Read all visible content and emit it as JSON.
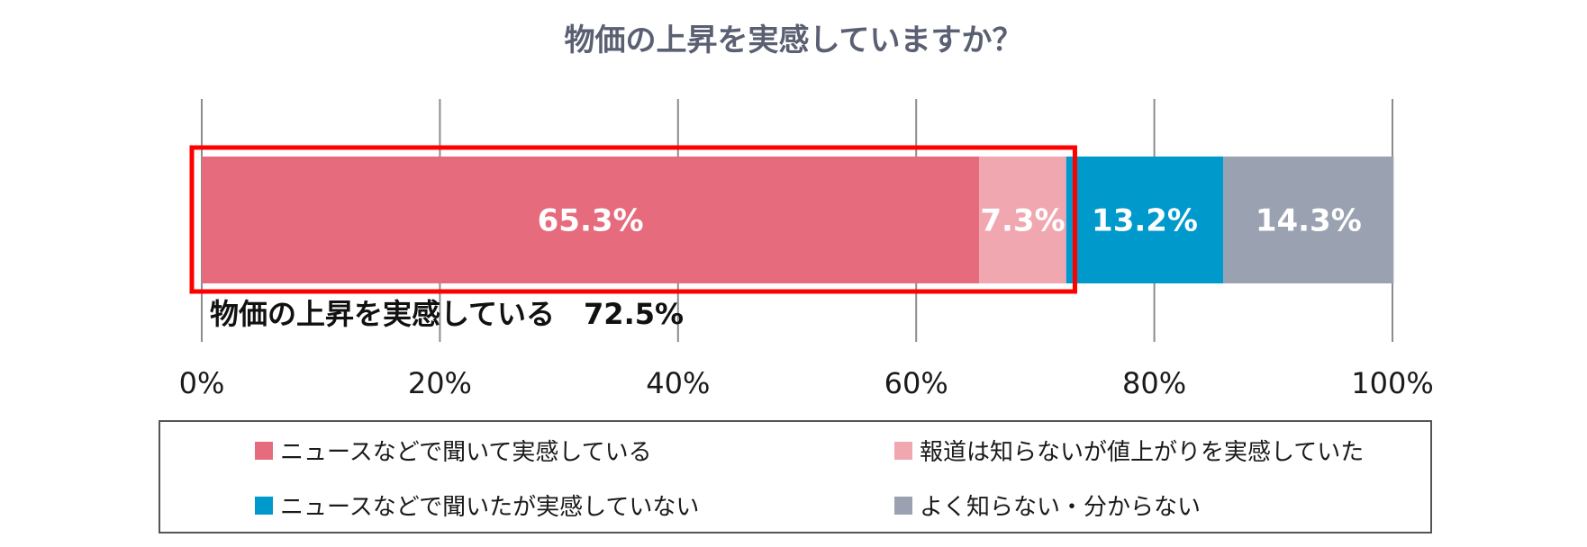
{
  "chart_data": {
    "type": "bar",
    "stacked": true,
    "orientation": "horizontal",
    "title": "物価の上昇を実感していますか？",
    "xlim": [
      0,
      100
    ],
    "ticks": [
      0,
      20,
      40,
      60,
      80,
      100
    ],
    "tick_labels": [
      "0%",
      "20%",
      "40%",
      "60%",
      "80%",
      "100%"
    ],
    "grid": true,
    "series": [
      {
        "name": "ニュースなどで聞いて実感している",
        "value": 65.3,
        "label": "65.3%",
        "color": "#e66b7d"
      },
      {
        "name": "報道は知らないが値上がりを実感していた",
        "value": 7.3,
        "label": "7.3%",
        "color": "#f0a7b0"
      },
      {
        "name": "ニュースなどで聞いたが実感していない",
        "value": 13.2,
        "label": "13.2%",
        "color": "#0099cc"
      },
      {
        "name": "よく知らない・分からない",
        "value": 14.3,
        "label": "14.3%",
        "color": "#9aa1b1"
      }
    ],
    "annotation": {
      "text": "物価の上昇を実感している　72.5%",
      "range": [
        0,
        72.5
      ],
      "box_color": "#ff0000"
    },
    "legend_position": "bottom"
  }
}
